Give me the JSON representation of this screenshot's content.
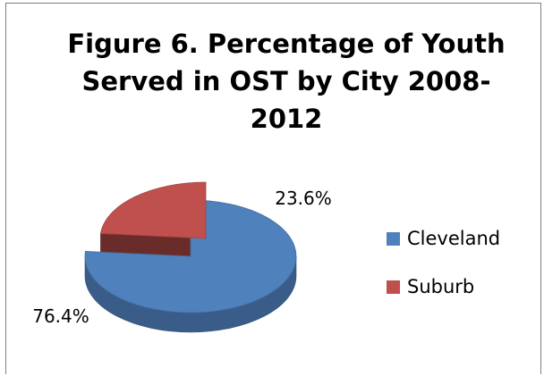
{
  "chart_data": {
    "type": "pie",
    "title_lines": [
      "Figure 6. Percentage of Youth",
      "Served in OST by City 2008-",
      "2012"
    ],
    "categories": [
      "Cleveland",
      "Suburb"
    ],
    "values": [
      76.4,
      23.6
    ],
    "data_labels": [
      "76.4%",
      "23.6%"
    ],
    "colors": [
      "#4f81bd",
      "#c0504d"
    ],
    "style": "3d-exploded",
    "legend_position": "right"
  }
}
